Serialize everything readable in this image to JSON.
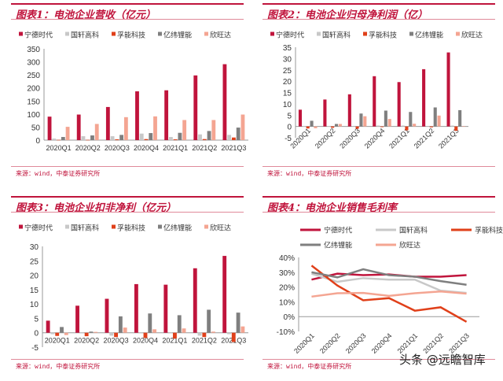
{
  "colors": {
    "宁德时代": "#c0143c",
    "国轩高科": "#c8c8c8",
    "孚能科技": "#e0401a",
    "亿纬锂能": "#7f7f7f",
    "欣旺达": "#f4a592"
  },
  "watermark": "头条 @远瞻智库",
  "chart_data": [
    {
      "type": "bar",
      "title": "图表1：电池企业营收（亿元）",
      "source": "来源：wind，中泰证券研究所",
      "categories": [
        "2020Q1",
        "2020Q2",
        "2020Q3",
        "2020Q4",
        "2021Q1",
        "2021Q2",
        "2021Q3"
      ],
      "ylim": [
        0,
        350
      ],
      "yticks": [
        0,
        50,
        100,
        150,
        200,
        250,
        300,
        350
      ],
      "xlabel_rotated": false,
      "legend": "top",
      "series": [
        {
          "name": "宁德时代",
          "values": [
            90,
            98,
            127,
            187,
            191,
            248,
            291
          ]
        },
        {
          "name": "国轩高科",
          "values": [
            6,
            15,
            15,
            25,
            12,
            22,
            20
          ]
        },
        {
          "name": "孚能科技",
          "values": [
            1,
            1,
            3,
            4,
            3,
            4,
            10
          ]
        },
        {
          "name": "亿纬锂能",
          "values": [
            12,
            18,
            20,
            27,
            28,
            35,
            48
          ]
        },
        {
          "name": "欣旺达",
          "values": [
            51,
            62,
            88,
            91,
            77,
            77,
            98
          ]
        }
      ]
    },
    {
      "type": "bar",
      "title": "图表2：电池企业归母净利润（亿）",
      "source": "来源：wind，中泰证券研究所",
      "categories": [
        "2020Q1",
        "2020Q2",
        "2020Q3",
        "2020Q4",
        "2021Q1",
        "2021Q2",
        "2021Q3"
      ],
      "ylim": [
        -5,
        35
      ],
      "yticks": [
        -5,
        0,
        5,
        10,
        15,
        20,
        25,
        30,
        35
      ],
      "xlabel_rotated": true,
      "legend": "top",
      "series": [
        {
          "name": "宁德时代",
          "values": [
            7.4,
            11.9,
            14.2,
            22.2,
            19.6,
            25.3,
            32.7
          ]
        },
        {
          "name": "国轩高科",
          "values": [
            0.1,
            0.1,
            0.2,
            0.4,
            0.4,
            0.2,
            0.4
          ]
        },
        {
          "name": "孚能科技",
          "values": [
            -0.9,
            -0.6,
            -1.0,
            -0.3,
            -1.7,
            -0.4,
            -1.9
          ]
        },
        {
          "name": "亿纬锂能",
          "values": [
            2.5,
            1.1,
            5.7,
            7.0,
            6.4,
            8.4,
            7.2
          ]
        },
        {
          "name": "欣旺达",
          "values": [
            -0.8,
            1.1,
            4.5,
            3.3,
            1.2,
            4.8,
            0.2
          ]
        }
      ]
    },
    {
      "type": "bar",
      "title": "图表3：电池企业扣非净利（亿元）",
      "source": "来源：wind，中泰证券研究所",
      "categories": [
        "2020Q1",
        "2020Q2",
        "2020Q3",
        "2020Q4",
        "2021Q1",
        "2021Q2",
        "2021Q3"
      ],
      "ylim": [
        -5,
        30
      ],
      "yticks": [
        -5,
        0,
        5,
        10,
        15,
        20,
        25,
        30
      ],
      "xlabel_rotated": false,
      "legend": "top",
      "series": [
        {
          "name": "宁德时代",
          "values": [
            4.2,
            9.4,
            11.8,
            16.9,
            16.7,
            22.4,
            26.7
          ]
        },
        {
          "name": "国轩高科",
          "values": [
            -0.5,
            0,
            -1.0,
            -0.2,
            -0.1,
            -1.0,
            -0.5
          ]
        },
        {
          "name": "孚能科技",
          "values": [
            -1.1,
            -1.2,
            -1.5,
            -1.8,
            -2.0,
            -1.5,
            -3.2
          ]
        },
        {
          "name": "亿纬锂能",
          "values": [
            2.0,
            0.4,
            5.7,
            6.7,
            6.1,
            8.0,
            7.0
          ]
        },
        {
          "name": "欣旺达",
          "values": [
            -0.8,
            0.3,
            1.8,
            1.2,
            1.5,
            0.4,
            2.2
          ]
        }
      ]
    },
    {
      "type": "line",
      "title": "图表4：电池企业销售毛利率",
      "source": "来源：wind，中泰证券研究所",
      "categories": [
        "2020Q1",
        "2020Q2",
        "2020Q3",
        "2020Q4",
        "2021Q1",
        "2021Q2",
        "2021Q3"
      ],
      "ylim": [
        -10,
        40
      ],
      "yticks": [
        -10,
        0,
        10,
        20,
        30,
        40
      ],
      "yunit": "%",
      "xlabel_rotated": true,
      "legend": "top",
      "series": [
        {
          "name": "宁德时代",
          "values": [
            25,
            29,
            28,
            28.5,
            27,
            27,
            28
          ]
        },
        {
          "name": "国轩高科",
          "values": [
            29,
            23.5,
            26,
            25,
            25,
            17.5,
            16
          ]
        },
        {
          "name": "孚能科技",
          "values": [
            34.5,
            21,
            11,
            12.5,
            4,
            6.3,
            -3.5
          ]
        },
        {
          "name": "亿纬锂能",
          "values": [
            30,
            26.5,
            32,
            28,
            27,
            24,
            21.5
          ]
        },
        {
          "name": "欣旺达",
          "values": [
            13.5,
            15.8,
            16,
            14,
            15.8,
            17,
            15.5
          ]
        }
      ]
    }
  ]
}
